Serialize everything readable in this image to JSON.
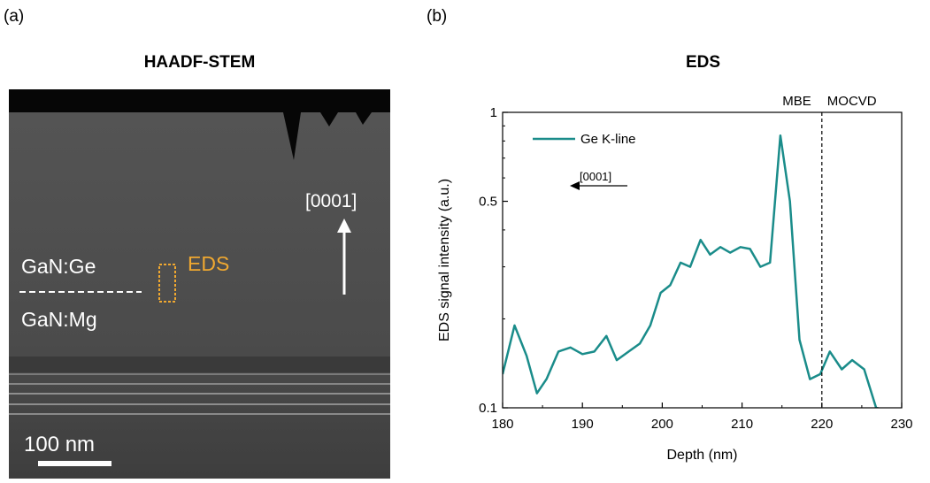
{
  "panel_a": {
    "label": "(a)",
    "title": "HAADF-STEM",
    "annotations": {
      "direction": "[0001]",
      "layer_top": "GaN:Ge",
      "layer_bottom": "GaN:Mg",
      "eds_box_label": "EDS",
      "scale_bar": "100 nm"
    },
    "colors": {
      "eds_box": "#f0a830",
      "annotation": "#ffffff"
    }
  },
  "panel_b": {
    "label": "(b)",
    "title": "EDS"
  },
  "chart_data": {
    "type": "line",
    "xlabel": "Depth (nm)",
    "ylabel": "EDS signal intensity (a.u.)",
    "xlim": [
      180,
      230
    ],
    "ylim": [
      0.1,
      1
    ],
    "y_scale": "log",
    "x_ticks": [
      180,
      190,
      200,
      210,
      220,
      230
    ],
    "y_ticks": [
      {
        "value": 0.1,
        "label": "0.1"
      },
      {
        "value": 0.5,
        "label": "0.5"
      },
      {
        "value": 1,
        "label": "1"
      }
    ],
    "legend": {
      "position": "top-left"
    },
    "annotations": {
      "region_left": "MBE",
      "region_right": "MOCVD",
      "divider_x": 220,
      "direction_label": "[0001]"
    },
    "series": [
      {
        "name": "Ge K-line",
        "color": "#1a8c8a",
        "x": [
          180,
          181.5,
          183,
          184.3,
          185.5,
          187,
          188.5,
          190,
          191.5,
          193,
          194.3,
          195.8,
          197.2,
          198.5,
          199.8,
          201,
          202.3,
          203.5,
          204.8,
          206,
          207.3,
          208.5,
          209.8,
          211,
          212.3,
          213.5,
          214.8,
          216,
          217.2,
          218.5,
          219.8,
          221,
          222.5,
          223.8,
          225.3,
          226.8,
          228.2,
          229.5
        ],
        "y": [
          0.13,
          0.19,
          0.15,
          0.112,
          0.125,
          0.155,
          0.16,
          0.152,
          0.155,
          0.175,
          0.145,
          0.155,
          0.165,
          0.19,
          0.245,
          0.26,
          0.31,
          0.3,
          0.37,
          0.33,
          0.35,
          0.335,
          0.35,
          0.345,
          0.3,
          0.31,
          0.835,
          0.5,
          0.17,
          0.125,
          0.13,
          0.155,
          0.135,
          0.145,
          0.135,
          0.1,
          0.098,
          0.098
        ]
      }
    ]
  }
}
